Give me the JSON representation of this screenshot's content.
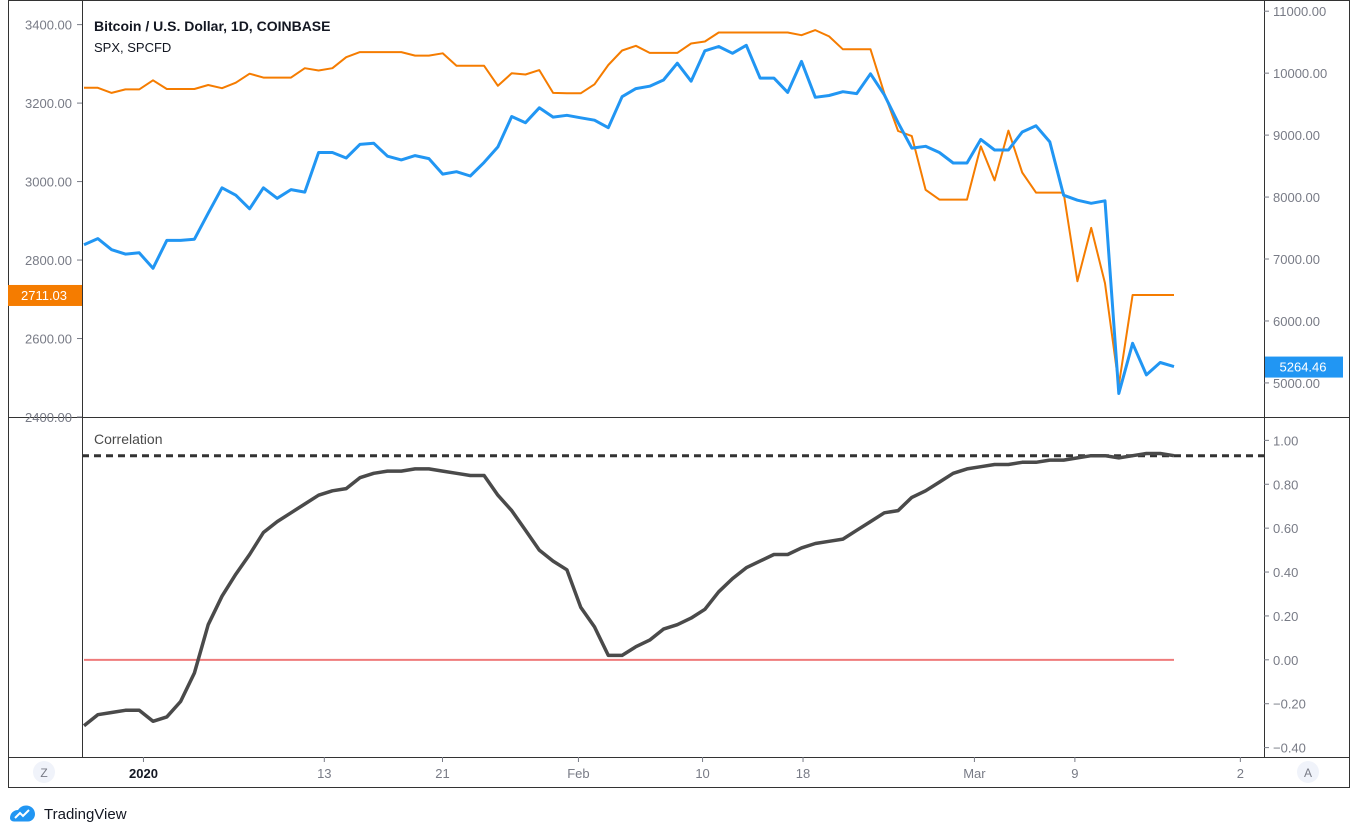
{
  "colors": {
    "bitcoin": "#2196f3",
    "spx": "#f57c00",
    "correlation": "#4a4a4a",
    "zero_line": "#ef7b7b",
    "reference_line": "#333333",
    "axis_text": "#787b86",
    "border": "#333333"
  },
  "footer": {
    "brand": "TradingView",
    "logo_icon": "tradingview-logo-icon"
  },
  "corners": {
    "left_button": "Z",
    "right_button": "A"
  },
  "chart_data": [
    {
      "type": "line",
      "title": "Bitcoin / U.S. Dollar, 1D, COINBASE",
      "subtitle": "SPX, SPCFD",
      "left_axis": {
        "ylim": [
          2400,
          3450
        ],
        "ticks": [
          2400,
          2600,
          2800,
          3000,
          3200,
          3400
        ],
        "tick_labels": [
          "2400.00",
          "2600.00",
          "2800.00",
          "3000.00",
          "3200.00",
          "3400.00"
        ]
      },
      "right_axis": {
        "ylim": [
          4450,
          11100
        ],
        "ticks": [
          5000,
          6000,
          7000,
          8000,
          9000,
          10000,
          11000
        ],
        "tick_labels": [
          "5000.00",
          "6000.00",
          "7000.00",
          "8000.00",
          "9000.00",
          "10000.00",
          "11000.00"
        ]
      },
      "x_labels": [
        "2020",
        "13",
        "21",
        "Feb",
        "10",
        "18",
        "Mar",
        "9",
        "2"
      ],
      "series": [
        {
          "name": "Bitcoin / U.S. Dollar",
          "axis": "right",
          "last_value_label": "5264.46",
          "values": [
            7230,
            7330,
            7150,
            7080,
            7100,
            6850,
            7300,
            7300,
            7320,
            7740,
            8150,
            8030,
            7810,
            8150,
            7980,
            8120,
            8080,
            8720,
            8720,
            8630,
            8850,
            8870,
            8660,
            8600,
            8670,
            8620,
            8370,
            8410,
            8340,
            8560,
            8810,
            9300,
            9200,
            9440,
            9290,
            9320,
            9280,
            9240,
            9120,
            9620,
            9750,
            9790,
            9890,
            10160,
            9870,
            10360,
            10430,
            10320,
            10450,
            9920,
            9920,
            9690,
            10190,
            9610,
            9640,
            9700,
            9670,
            9990,
            9650,
            9200,
            8790,
            8820,
            8720,
            8550,
            8550,
            8930,
            8760,
            8760,
            9050,
            9150,
            8890,
            8030,
            7950,
            7900,
            7940,
            4830,
            5640,
            5130,
            5330,
            5264
          ]
        },
        {
          "name": "SPX",
          "axis": "left",
          "last_value_label": "2711.03",
          "values": [
            3239,
            3239,
            3226,
            3235,
            3235,
            3258,
            3236,
            3236,
            3236,
            3246,
            3238,
            3252,
            3275,
            3265,
            3265,
            3265,
            3289,
            3283,
            3289,
            3317,
            3330,
            3330,
            3330,
            3330,
            3321,
            3321,
            3327,
            3295,
            3295,
            3295,
            3244,
            3276,
            3273,
            3284,
            3226,
            3225,
            3225,
            3248,
            3297,
            3334,
            3346,
            3328,
            3328,
            3328,
            3352,
            3357,
            3380,
            3380,
            3380,
            3380,
            3380,
            3380,
            3373,
            3386,
            3370,
            3337,
            3337,
            3337,
            3225,
            3129,
            3116,
            2979,
            2954,
            2954,
            2954,
            3090,
            3003,
            3130,
            3023,
            2972,
            2972,
            2972,
            2746,
            2882,
            2741,
            2481,
            2711,
            2711,
            2711,
            2711
          ]
        }
      ]
    },
    {
      "type": "line",
      "title": "Correlation",
      "right_axis": {
        "ylim": [
          -0.42,
          1.07
        ],
        "ticks": [
          -0.4,
          -0.2,
          0,
          0.2,
          0.4,
          0.6,
          0.8,
          1.0
        ],
        "tick_labels": [
          "−0.40",
          "−0.20",
          "0.00",
          "0.20",
          "0.40",
          "0.60",
          "0.80",
          "1.00"
        ]
      },
      "reference_lines": [
        0.93,
        0.0
      ],
      "series": [
        {
          "name": "Correlation",
          "values": [
            -0.3,
            -0.25,
            -0.24,
            -0.23,
            -0.23,
            -0.28,
            -0.26,
            -0.19,
            -0.06,
            0.16,
            0.29,
            0.39,
            0.48,
            0.58,
            0.63,
            0.67,
            0.71,
            0.75,
            0.77,
            0.78,
            0.83,
            0.85,
            0.86,
            0.86,
            0.87,
            0.87,
            0.86,
            0.85,
            0.84,
            0.84,
            0.75,
            0.68,
            0.59,
            0.5,
            0.45,
            0.41,
            0.24,
            0.15,
            0.02,
            0.02,
            0.06,
            0.09,
            0.14,
            0.16,
            0.19,
            0.23,
            0.31,
            0.37,
            0.42,
            0.45,
            0.48,
            0.48,
            0.51,
            0.53,
            0.54,
            0.55,
            0.59,
            0.63,
            0.67,
            0.68,
            0.74,
            0.77,
            0.81,
            0.85,
            0.87,
            0.88,
            0.89,
            0.89,
            0.9,
            0.9,
            0.91,
            0.91,
            0.92,
            0.93,
            0.93,
            0.92,
            0.93,
            0.94,
            0.94,
            0.93
          ]
        }
      ]
    }
  ]
}
